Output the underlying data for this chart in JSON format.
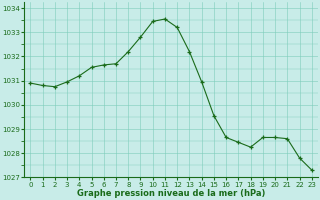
{
  "x": [
    0,
    1,
    2,
    3,
    4,
    5,
    6,
    7,
    8,
    9,
    10,
    11,
    12,
    13,
    14,
    15,
    16,
    17,
    18,
    19,
    20,
    21,
    22,
    23
  ],
  "y": [
    1030.9,
    1030.8,
    1030.75,
    1030.95,
    1031.2,
    1031.55,
    1031.65,
    1031.7,
    1032.2,
    1032.8,
    1033.45,
    1033.55,
    1033.2,
    1032.2,
    1030.95,
    1029.55,
    1028.65,
    1028.45,
    1028.25,
    1028.65,
    1028.65,
    1028.6,
    1027.8,
    1027.3
  ],
  "line_color": "#1a6b1a",
  "marker_color": "#1a6b1a",
  "bg_color": "#c8ece8",
  "grid_color": "#7dccbb",
  "xlabel": "Graphe pression niveau de la mer (hPa)",
  "xlabel_color": "#1a6b1a",
  "tick_color": "#1a6b1a",
  "ylim": [
    1027.0,
    1034.25
  ],
  "xlim": [
    -0.5,
    23.5
  ],
  "yticks": [
    1027,
    1028,
    1029,
    1030,
    1031,
    1032,
    1033,
    1034
  ],
  "xticks": [
    0,
    1,
    2,
    3,
    4,
    5,
    6,
    7,
    8,
    9,
    10,
    11,
    12,
    13,
    14,
    15,
    16,
    17,
    18,
    19,
    20,
    21,
    22,
    23
  ],
  "tick_fontsize": 5.0,
  "xlabel_fontsize": 6.0,
  "linewidth": 0.8,
  "markersize": 3.5
}
